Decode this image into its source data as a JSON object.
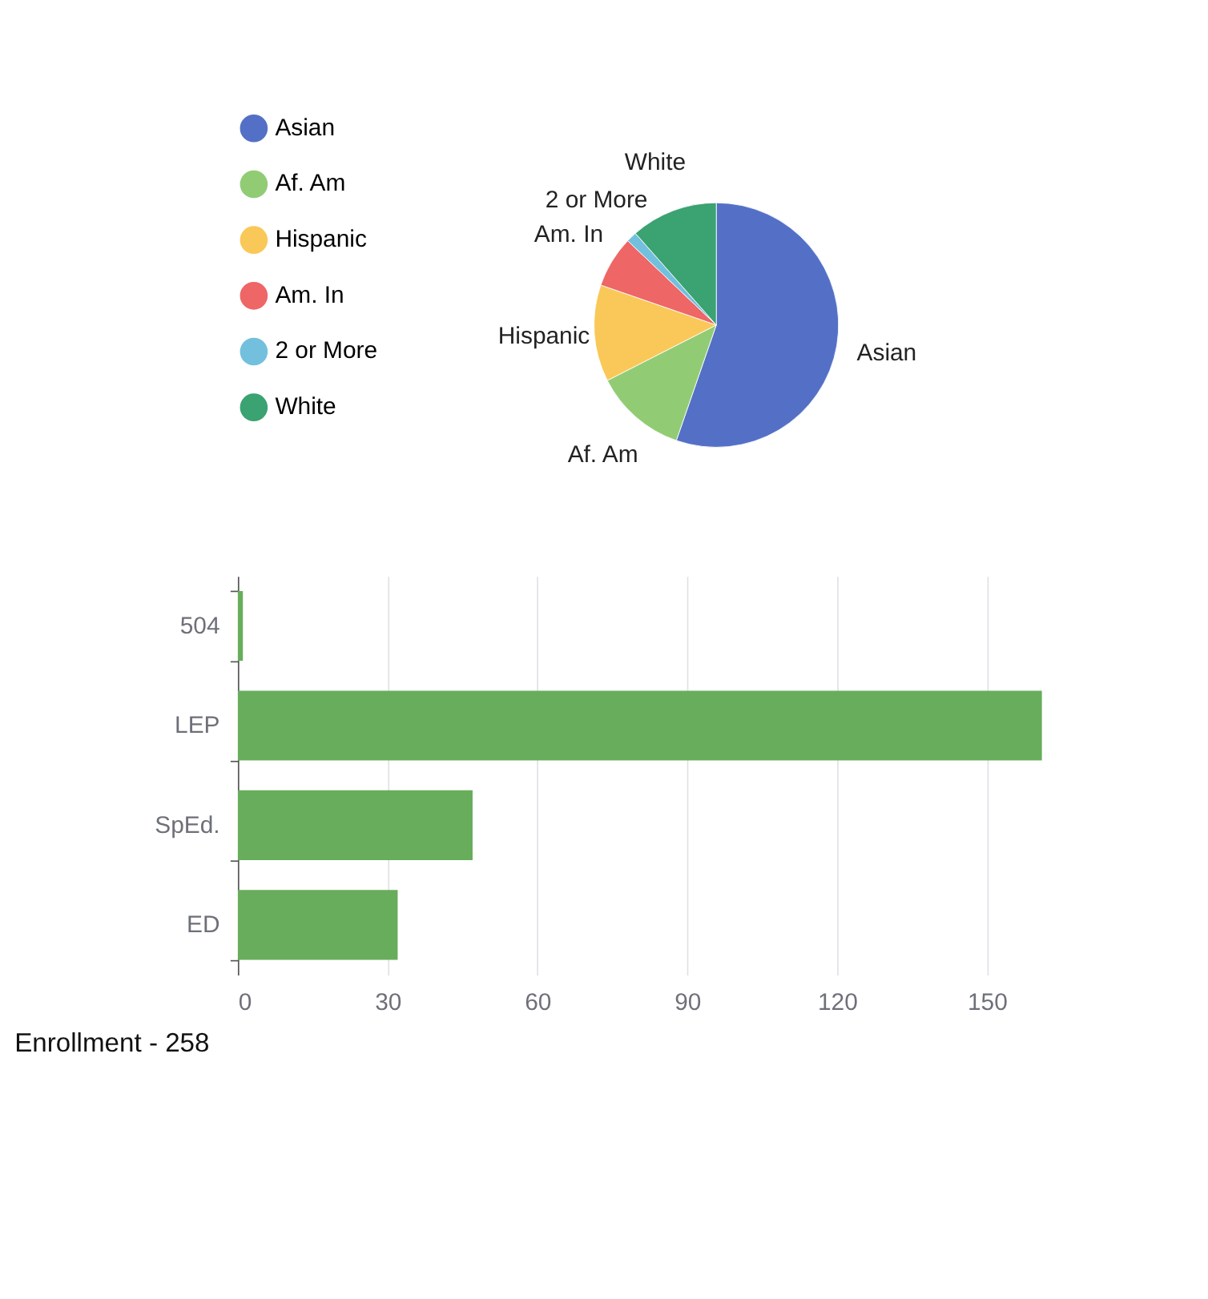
{
  "chart_data": [
    {
      "type": "pie",
      "categories": [
        "Asian",
        "Af. Am",
        "Hispanic",
        "Am. In",
        "2 or More",
        "White"
      ],
      "values": [
        55.3,
        12.2,
        12.8,
        6.8,
        1.4,
        11.5
      ],
      "colors": [
        "#5470c6",
        "#91cc75",
        "#fac858",
        "#ee6666",
        "#73c0de",
        "#3ba272"
      ],
      "legend": "top left"
    },
    {
      "type": "bar",
      "orientation": "horizontal",
      "categories": [
        "504",
        "LEP",
        "SpEd.",
        "ED"
      ],
      "values": [
        1,
        161,
        47,
        32
      ],
      "color": "#67ad5b",
      "xlim": [
        0,
        161
      ],
      "xticks": [
        0,
        30,
        60,
        90,
        120,
        150
      ],
      "grid": "x",
      "annotations": [
        "Enrollment - 258"
      ]
    }
  ]
}
